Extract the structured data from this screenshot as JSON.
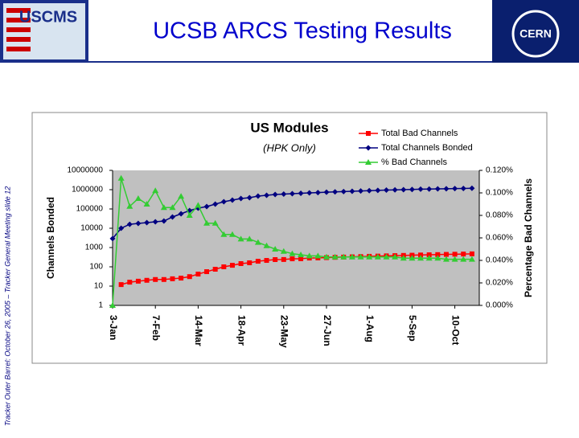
{
  "slide": {
    "title": "UCSB ARCS Testing Results",
    "sidebar": "Tracker Outer Barrel: October 26, 2005 – Tracker General Meeting slide 12",
    "logos": {
      "left": "USCMS",
      "right": "CERN"
    }
  },
  "chart_data": {
    "type": "line",
    "title": "US Modules",
    "subtitle": "(HPK Only)",
    "y_label": "Channels Bonded",
    "y2_label": "Percentage Bad Channels",
    "ylog": true,
    "legend": "top-right",
    "x": [
      "3-Jan",
      "10-Jan",
      "17-Jan",
      "24-Jan",
      "31-Jan",
      "7-Feb",
      "14-Feb",
      "21-Feb",
      "28-Feb",
      "7-Mar",
      "14-Mar",
      "21-Mar",
      "28-Mar",
      "4-Apr",
      "11-Apr",
      "18-Apr",
      "25-Apr",
      "2-May",
      "9-May",
      "16-May",
      "23-May",
      "30-May",
      "6-Jun",
      "13-Jun",
      "20-Jun",
      "27-Jun",
      "4-Jul",
      "11-Jul",
      "18-Jul",
      "25-Jul",
      "1-Aug",
      "8-Aug",
      "15-Aug",
      "22-Aug",
      "29-Aug",
      "5-Sep",
      "12-Sep",
      "19-Sep",
      "26-Sep",
      "3-Oct",
      "10-Oct",
      "17-Oct",
      "24-Oct"
    ],
    "xlim": [
      "3-Jan",
      "30-Oct"
    ],
    "xticks": [
      "3-Jan",
      "7-Feb",
      "14-Mar",
      "18-Apr",
      "23-May",
      "27-Jun",
      "1-Aug",
      "5-Sep",
      "10-Oct"
    ],
    "ylim": [
      1,
      10000000
    ],
    "yticks": [
      1,
      10,
      100,
      1000,
      10000,
      100000,
      1000000,
      10000000
    ],
    "y2lim": [
      0,
      0.12
    ],
    "y2ticks": [
      {
        "value": 0,
        "label": "0.000%"
      },
      {
        "value": 0.02,
        "label": "0.020%"
      },
      {
        "value": 0.04,
        "label": "0.040%"
      },
      {
        "value": 0.06,
        "label": "0.060%"
      },
      {
        "value": 0.08,
        "label": "0.080%"
      },
      {
        "value": 0.1,
        "label": "0.100%"
      },
      {
        "value": 0.12,
        "label": "0.120%"
      }
    ],
    "series": [
      {
        "name": "Total Bad Channels",
        "color": "#ff0000",
        "marker": "square",
        "values": [
          null,
          12,
          16,
          18,
          20,
          22,
          22,
          24,
          26,
          31,
          42,
          56,
          75,
          100,
          120,
          147,
          162,
          195,
          215,
          237,
          240,
          260,
          262,
          285,
          290,
          300,
          310,
          320,
          330,
          340,
          350,
          360,
          370,
          380,
          390,
          400,
          410,
          420,
          430,
          440,
          450,
          460,
          470
        ]
      },
      {
        "name": "Total Channels Bonded",
        "color": "#000080",
        "marker": "diamond",
        "values": [
          2900,
          10000,
          16000,
          17800,
          19600,
          21500,
          23700,
          38300,
          56200,
          82500,
          110000,
          133000,
          178000,
          237000,
          287000,
          348000,
          383000,
          464000,
          510000,
          562000,
          590000,
          620000,
          650000,
          680000,
          710000,
          740000,
          770000,
          800000,
          830000,
          860000,
          890000,
          920000,
          950000,
          980000,
          1000000,
          1030000,
          1060000,
          1080000,
          1100000,
          1120000,
          1140000,
          1160000,
          1180000
        ]
      },
      {
        "name": "% Bad Channels",
        "color": "#33cc33",
        "marker": "triangle",
        "axis": "y2",
        "values": [
          0,
          0.113,
          0.088,
          0.095,
          0.09,
          0.102,
          0.087,
          0.087,
          0.097,
          0.08,
          0.089,
          0.073,
          0.073,
          0.063,
          0.063,
          0.059,
          0.059,
          0.056,
          0.053,
          0.05,
          0.048,
          0.046,
          0.045,
          0.044,
          0.044,
          0.043,
          0.043,
          0.043,
          0.043,
          0.043,
          0.043,
          0.043,
          0.043,
          0.043,
          0.042,
          0.042,
          0.042,
          0.042,
          0.042,
          0.041,
          0.041,
          0.041,
          0.041
        ]
      }
    ]
  }
}
